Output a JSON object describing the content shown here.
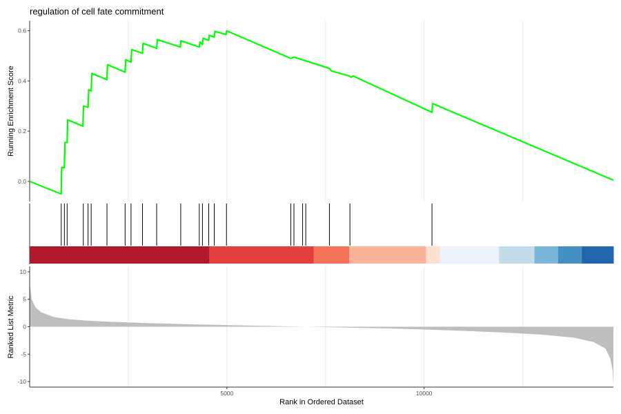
{
  "figure": {
    "title": "regulation of cell fate commitment",
    "xlabel": "Rank in Ordered Dataset",
    "ylabel_top": "Running Enrichment Score",
    "ylabel_bottom": "Ranked List Metric"
  },
  "chart_data": [
    {
      "type": "line",
      "panel": "running-enrichment-score",
      "title": "regulation of cell fate commitment",
      "xlabel": "",
      "ylabel": "Running Enrichment Score",
      "xlim": [
        0,
        14800
      ],
      "ylim": [
        -0.08,
        0.64
      ],
      "yticks": [
        0.0,
        0.2,
        0.4,
        0.6
      ],
      "ytick_labels": [
        "0.0",
        "0.2",
        "0.4",
        "0.6"
      ],
      "xgrid": [
        2500,
        5000,
        7500,
        10000,
        12500
      ],
      "grid": "vertical only",
      "line_color": "#00ff00",
      "series": [
        {
          "points": [
            [
              0,
              0.0
            ],
            [
              800,
              -0.05
            ],
            [
              810,
              0.055
            ],
            [
              880,
              0.055
            ],
            [
              895,
              0.155
            ],
            [
              950,
              0.155
            ],
            [
              965,
              0.245
            ],
            [
              1350,
              0.22
            ],
            [
              1365,
              0.3
            ],
            [
              1480,
              0.295
            ],
            [
              1495,
              0.365
            ],
            [
              1560,
              0.36
            ],
            [
              1575,
              0.43
            ],
            [
              1960,
              0.405
            ],
            [
              1975,
              0.465
            ],
            [
              2420,
              0.435
            ],
            [
              2435,
              0.485
            ],
            [
              2570,
              0.475
            ],
            [
              2585,
              0.525
            ],
            [
              2860,
              0.51
            ],
            [
              2875,
              0.55
            ],
            [
              3220,
              0.53
            ],
            [
              3235,
              0.565
            ],
            [
              3820,
              0.535
            ],
            [
              3835,
              0.56
            ],
            [
              4300,
              0.535
            ],
            [
              4315,
              0.555
            ],
            [
              4380,
              0.545
            ],
            [
              4395,
              0.57
            ],
            [
              4540,
              0.562
            ],
            [
              4555,
              0.582
            ],
            [
              4680,
              0.575
            ],
            [
              4695,
              0.598
            ],
            [
              4980,
              0.585
            ],
            [
              4995,
              0.6
            ],
            [
              6620,
              0.49
            ],
            [
              6700,
              0.495
            ],
            [
              7000,
              0.48
            ],
            [
              7600,
              0.45
            ],
            [
              7650,
              0.44
            ],
            [
              8100,
              0.42
            ],
            [
              8150,
              0.415
            ],
            [
              8200,
              0.42
            ],
            [
              10200,
              0.275
            ],
            [
              10215,
              0.31
            ],
            [
              14800,
              0.005
            ]
          ]
        }
      ]
    },
    {
      "type": "rug",
      "panel": "gene-set-hits",
      "hit_positions": [
        800,
        880,
        950,
        1360,
        1480,
        1560,
        1960,
        2420,
        2570,
        2860,
        3220,
        3830,
        4300,
        4380,
        4540,
        4680,
        4990,
        6620,
        6700,
        6920,
        7000,
        7600,
        8120,
        10200
      ],
      "color_band": [
        {
          "from": 0,
          "to": 4550,
          "color": "#b2182b"
        },
        {
          "from": 4550,
          "to": 7200,
          "color": "#e3403c"
        },
        {
          "from": 7200,
          "to": 8100,
          "color": "#f4735a"
        },
        {
          "from": 8100,
          "to": 10050,
          "color": "#fbb49a"
        },
        {
          "from": 10050,
          "to": 10400,
          "color": "#fde0d2"
        },
        {
          "from": 10400,
          "to": 11900,
          "color": "#ecf2fb"
        },
        {
          "from": 11900,
          "to": 12800,
          "color": "#c3dcea"
        },
        {
          "from": 12800,
          "to": 13400,
          "color": "#7ab5da"
        },
        {
          "from": 13400,
          "to": 14000,
          "color": "#4390c5"
        },
        {
          "from": 14000,
          "to": 14800,
          "color": "#2166ac"
        }
      ]
    },
    {
      "type": "area",
      "panel": "ranked-list-metric",
      "xlabel": "Rank in Ordered Dataset",
      "ylabel": "Ranked List Metric",
      "xlim": [
        0,
        14800
      ],
      "ylim": [
        -11,
        11
      ],
      "yticks": [
        10,
        5,
        0,
        -5,
        -10
      ],
      "ytick_labels": [
        "10",
        "5",
        "0",
        "-5",
        "-10"
      ],
      "xticks": [
        5000,
        10000
      ],
      "xtick_labels": [
        "5000",
        "10000"
      ],
      "fill_color": "#bebebe",
      "series": [
        {
          "points": [
            [
              0,
              8.0
            ],
            [
              50,
              5.0
            ],
            [
              150,
              3.5
            ],
            [
              300,
              2.6
            ],
            [
              600,
              1.8
            ],
            [
              1000,
              1.35
            ],
            [
              1500,
              1.1
            ],
            [
              2000,
              0.9
            ],
            [
              3000,
              0.65
            ],
            [
              4000,
              0.45
            ],
            [
              5000,
              0.3
            ],
            [
              6000,
              0.15
            ],
            [
              7000,
              0.0
            ],
            [
              8000,
              -0.15
            ],
            [
              9000,
              -0.3
            ],
            [
              10000,
              -0.5
            ],
            [
              11000,
              -0.75
            ],
            [
              12000,
              -1.05
            ],
            [
              13000,
              -1.45
            ],
            [
              13800,
              -2.0
            ],
            [
              14300,
              -2.8
            ],
            [
              14600,
              -4.0
            ],
            [
              14720,
              -5.8
            ],
            [
              14780,
              -8.0
            ],
            [
              14800,
              -10.7
            ]
          ]
        }
      ]
    }
  ]
}
